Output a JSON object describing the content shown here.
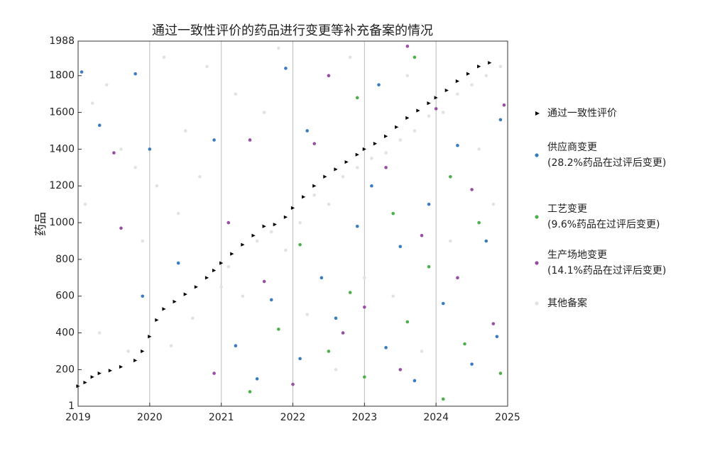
{
  "chart_data": {
    "type": "scatter",
    "title": "通过一致性评价的药品进行变更等补充备案的情况",
    "y_label": "药品",
    "xlim": [
      2019,
      2025
    ],
    "xticks": [
      2019,
      2020,
      2021,
      2022,
      2023,
      2024,
      2025
    ],
    "ylim": [
      1,
      1988
    ],
    "yticks": [
      1,
      200,
      400,
      600,
      800,
      1000,
      1200,
      1400,
      1600,
      1800,
      1988
    ],
    "grid": true,
    "legend_position": "right",
    "series": [
      {
        "name": "其他备案",
        "color": "#e2e2e2",
        "marker": "circle",
        "x": [
          2019.1,
          2019.2,
          2019.4,
          2019.6,
          2019.7,
          2019.9,
          2020.1,
          2020.3,
          2020.5,
          2020.6,
          2020.8,
          2021.0,
          2021.1,
          2021.3,
          2021.5,
          2021.7,
          2021.9,
          2022.1,
          2022.3,
          2022.5,
          2022.7,
          2022.9,
          2023.1,
          2023.3,
          2023.5,
          2023.7,
          2023.9,
          2024.1,
          2024.3,
          2024.5,
          2024.7,
          2024.9,
          2019.3,
          2019.8,
          2020.2,
          2020.7,
          2021.2,
          2021.6,
          2022.2,
          2022.6,
          2023.0,
          2023.4,
          2023.8,
          2024.2,
          2024.6,
          2024.8,
          2020.4,
          2021.8,
          2022.8,
          2023.6
        ],
        "y": [
          1100,
          1650,
          1750,
          1400,
          300,
          900,
          1200,
          330,
          1500,
          480,
          1850,
          650,
          760,
          600,
          900,
          950,
          850,
          1000,
          1150,
          1100,
          1250,
          1300,
          1350,
          1380,
          1450,
          1500,
          1580,
          1600,
          1700,
          1750,
          1800,
          1850,
          400,
          1300,
          1900,
          1250,
          1700,
          1600,
          500,
          200,
          700,
          600,
          300,
          900,
          1400,
          1100,
          1050,
          1950,
          1900,
          1800
        ]
      },
      {
        "name": "供应商变更",
        "legend_detail": "(28.2%药品在过评后变更)",
        "color": "#3a7dbf",
        "marker": "circle",
        "x": [
          2019.05,
          2019.3,
          2019.8,
          2020.0,
          2019.9,
          2020.4,
          2020.9,
          2021.2,
          2021.5,
          2021.7,
          2021.9,
          2022.1,
          2022.4,
          2022.6,
          2022.9,
          2023.1,
          2023.3,
          2023.5,
          2023.7,
          2023.9,
          2024.1,
          2024.3,
          2024.5,
          2024.7,
          2024.9,
          2024.85,
          2023.2,
          2022.2
        ],
        "y": [
          1820,
          1530,
          1810,
          1400,
          600,
          780,
          1450,
          330,
          150,
          580,
          1840,
          260,
          700,
          480,
          980,
          1200,
          320,
          870,
          140,
          1100,
          560,
          1420,
          230,
          900,
          1560,
          380,
          1750,
          1500
        ]
      },
      {
        "name": "工艺变更",
        "legend_detail": "(9.6%药品在过评后变更)",
        "color": "#4daf4a",
        "marker": "circle",
        "x": [
          2021.4,
          2021.8,
          2022.1,
          2022.5,
          2022.8,
          2023.0,
          2023.4,
          2023.6,
          2023.9,
          2024.2,
          2024.4,
          2024.6,
          2024.9,
          2023.7,
          2022.9,
          2024.1
        ],
        "y": [
          80,
          420,
          880,
          300,
          620,
          160,
          1050,
          460,
          760,
          1250,
          340,
          1000,
          180,
          1900,
          1680,
          40
        ]
      },
      {
        "name": "生产场地变更",
        "legend_detail": "(14.1%药品在过评后变更)",
        "color": "#984ea3",
        "marker": "circle",
        "x": [
          2019.5,
          2019.6,
          2020.9,
          2021.1,
          2021.4,
          2021.6,
          2022.0,
          2022.3,
          2022.7,
          2023.0,
          2023.3,
          2023.5,
          2023.8,
          2024.0,
          2024.3,
          2024.5,
          2024.8,
          2024.95,
          2023.6,
          2022.5
        ],
        "y": [
          1380,
          970,
          180,
          1000,
          1450,
          680,
          120,
          1430,
          400,
          540,
          1300,
          200,
          930,
          1620,
          700,
          1180,
          450,
          1640,
          1960,
          1800
        ]
      },
      {
        "name": "通过一致性评价",
        "color": "#000000",
        "marker": "triangle",
        "x": [
          2019.0,
          2019.1,
          2019.2,
          2019.3,
          2019.45,
          2019.6,
          2019.8,
          2019.9,
          2020.0,
          2020.1,
          2020.2,
          2020.35,
          2020.5,
          2020.65,
          2020.8,
          2020.9,
          2021.0,
          2021.15,
          2021.3,
          2021.45,
          2021.6,
          2021.75,
          2021.9,
          2022.0,
          2022.15,
          2022.3,
          2022.45,
          2022.6,
          2022.75,
          2022.9,
          2023.0,
          2023.15,
          2023.3,
          2023.45,
          2023.6,
          2023.75,
          2023.9,
          2024.0,
          2024.15,
          2024.3,
          2024.45,
          2024.6,
          2024.75
        ],
        "y": [
          110,
          130,
          160,
          180,
          195,
          215,
          250,
          300,
          380,
          470,
          530,
          570,
          610,
          650,
          700,
          740,
          780,
          830,
          880,
          930,
          980,
          990,
          1030,
          1080,
          1140,
          1200,
          1250,
          1290,
          1330,
          1370,
          1400,
          1430,
          1470,
          1520,
          1570,
          1610,
          1650,
          1680,
          1720,
          1770,
          1810,
          1850,
          1870
        ]
      }
    ]
  }
}
